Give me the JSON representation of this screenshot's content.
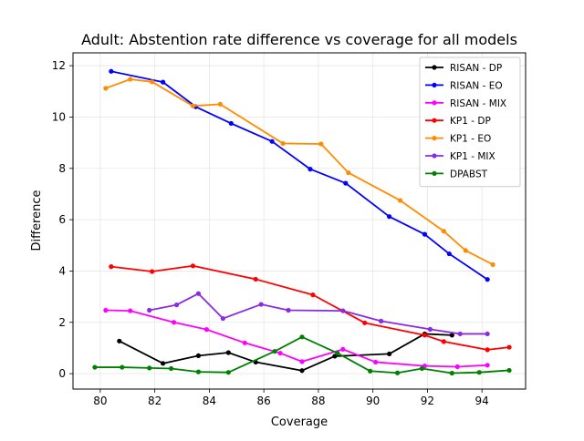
{
  "chart_data": {
    "type": "line",
    "title": "Adult: Abstention rate difference vs coverage for all models",
    "xlabel": "Coverage",
    "ylabel": "Difference",
    "xlim": [
      79.0,
      95.6
    ],
    "ylim": [
      -0.6,
      12.5
    ],
    "xticks": [
      80,
      82,
      84,
      86,
      88,
      90,
      92,
      94
    ],
    "yticks": [
      0,
      2,
      4,
      6,
      8,
      10,
      12
    ],
    "grid": true,
    "legend_position": "top-right",
    "series": [
      {
        "name": "RISAN - DP",
        "color": "#000000",
        "x": [
          80.7,
          82.3,
          83.6,
          84.7,
          85.7,
          87.4,
          88.6,
          90.6,
          91.9,
          92.9
        ],
        "y": [
          1.27,
          0.4,
          0.7,
          0.82,
          0.45,
          0.12,
          0.68,
          0.77,
          1.55,
          1.5
        ]
      },
      {
        "name": "RISAN - EO",
        "color": "#0000ff",
        "x": [
          80.4,
          82.3,
          83.5,
          84.8,
          86.3,
          87.7,
          89.0,
          90.6,
          91.9,
          92.8,
          94.2
        ],
        "y": [
          11.78,
          11.36,
          10.4,
          9.75,
          9.05,
          7.97,
          7.42,
          6.12,
          5.43,
          4.67,
          3.67
        ]
      },
      {
        "name": "RISAN - MIX",
        "color": "#ff00ff",
        "x": [
          80.2,
          81.1,
          82.7,
          83.9,
          85.3,
          86.6,
          87.4,
          88.9,
          90.1,
          91.9,
          93.1,
          94.2
        ],
        "y": [
          2.47,
          2.45,
          2.0,
          1.72,
          1.2,
          0.8,
          0.47,
          0.95,
          0.45,
          0.3,
          0.27,
          0.33
        ]
      },
      {
        "name": "KP1 - DP",
        "color": "#ff0000",
        "x": [
          80.4,
          81.9,
          83.4,
          85.7,
          87.8,
          89.7,
          91.9,
          92.6,
          94.2,
          95.0
        ],
        "y": [
          4.17,
          3.98,
          4.2,
          3.68,
          3.07,
          1.98,
          1.5,
          1.25,
          0.93,
          1.03
        ]
      },
      {
        "name": "KP1 - EO",
        "color": "#ff8c00",
        "x": [
          80.2,
          81.1,
          81.9,
          83.4,
          84.4,
          86.7,
          88.1,
          89.1,
          91.0,
          92.6,
          93.4,
          94.4
        ],
        "y": [
          11.12,
          11.47,
          11.37,
          10.43,
          10.5,
          8.97,
          8.95,
          7.83,
          6.75,
          5.55,
          4.8,
          4.25
        ]
      },
      {
        "name": "KP1 - MIX",
        "color": "#8a2be2",
        "x": [
          81.8,
          82.8,
          83.6,
          84.5,
          85.9,
          86.9,
          88.9,
          90.3,
          92.1,
          93.2,
          94.2
        ],
        "y": [
          2.47,
          2.68,
          3.12,
          2.15,
          2.7,
          2.47,
          2.45,
          2.05,
          1.73,
          1.55,
          1.55
        ]
      },
      {
        "name": "DPABST",
        "color": "#008000",
        "x": [
          79.8,
          80.8,
          81.8,
          82.6,
          83.6,
          84.7,
          86.4,
          87.4,
          88.7,
          89.9,
          90.9,
          91.8,
          92.9,
          93.9,
          95.0
        ],
        "y": [
          0.25,
          0.25,
          0.22,
          0.2,
          0.07,
          0.05,
          0.87,
          1.43,
          0.8,
          0.1,
          0.03,
          0.2,
          0.02,
          0.05,
          0.13
        ]
      }
    ]
  }
}
